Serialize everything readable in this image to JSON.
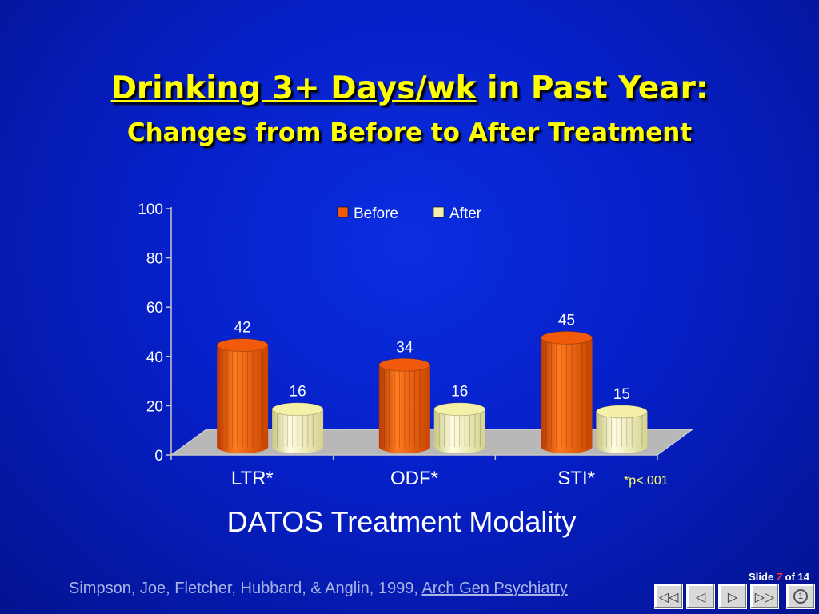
{
  "slide": {
    "title_underlined": "Drinking 3+ Days/wk",
    "title_rest": " in Past Year:",
    "subtitle": "Changes from Before to After Treatment",
    "citation_text": "Simpson, Joe, Fletcher, Hubbard, & Anglin, 1999, ",
    "citation_journal": "Arch Gen Psychiatry",
    "slide_label": "Slide ",
    "slide_current": "7",
    "slide_of": " of 14",
    "footnote": "*p<.001"
  },
  "nav": {
    "first_icon": "first-slide-icon",
    "prev_icon": "previous-slide-icon",
    "next_icon": "next-slide-icon",
    "last_icon": "last-slide-icon",
    "home_label": "1"
  },
  "colors": {
    "before": "#f05a0a",
    "after": "#f4f0a8",
    "title": "#ffff00",
    "background": "#0620c8"
  },
  "chart_data": {
    "type": "bar",
    "categories": [
      "LTR*",
      "ODF*",
      "STI*"
    ],
    "series": [
      {
        "name": "Before",
        "values": [
          42,
          34,
          45
        ]
      },
      {
        "name": "After",
        "values": [
          16,
          16,
          15
        ]
      }
    ],
    "xlabel": "DATOS Treatment Modality",
    "ylabel": "",
    "ylim": [
      0,
      100
    ],
    "yticks": [
      0,
      20,
      40,
      60,
      80,
      100
    ],
    "legend_position": "top"
  }
}
